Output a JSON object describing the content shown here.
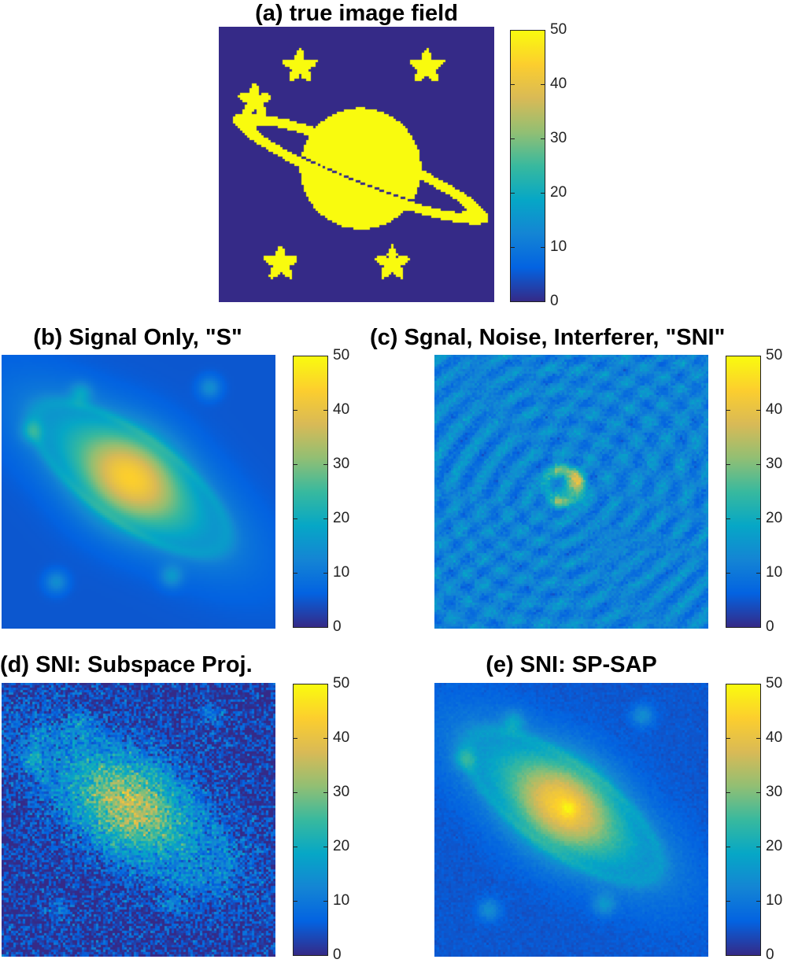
{
  "chart_data": [
    {
      "id": "a",
      "type": "heatmap",
      "title": "(a) true image field",
      "scene": "truth",
      "colorbar": {
        "ticks": [
          0,
          10,
          20,
          30,
          40,
          50
        ],
        "tick_labels": [
          "0",
          "10",
          "20",
          "30",
          "40",
          "50"
        ],
        "range": [
          0,
          50
        ],
        "colormap": "parula"
      }
    },
    {
      "id": "b",
      "type": "heatmap",
      "title": "(b) Signal Only, \"S\"",
      "scene": "signal",
      "colorbar": {
        "ticks": [
          0,
          10,
          20,
          30,
          40,
          50
        ],
        "tick_labels": [
          "0",
          "10",
          "20",
          "30",
          "40",
          "50"
        ],
        "range": [
          0,
          50
        ],
        "colormap": "parula"
      }
    },
    {
      "id": "c",
      "type": "heatmap",
      "title": "(c) Sgnal, Noise, Interferer, \"SNI\"",
      "scene": "sni",
      "colorbar": {
        "ticks": [
          0,
          10,
          20,
          30,
          40,
          50
        ],
        "tick_labels": [
          "0",
          "10",
          "20",
          "30",
          "40",
          "50"
        ],
        "range": [
          0,
          50
        ],
        "colormap": "parula"
      }
    },
    {
      "id": "d",
      "type": "heatmap",
      "title": "(d) SNI: Subspace Proj.",
      "scene": "subspace",
      "colorbar": {
        "ticks": [
          0,
          10,
          20,
          30,
          40,
          50
        ],
        "tick_labels": [
          "0",
          "10",
          "20",
          "30",
          "40",
          "50"
        ],
        "range": [
          0,
          50
        ],
        "colormap": "parula"
      }
    },
    {
      "id": "e",
      "type": "heatmap",
      "title": "(e) SNI: SP-SAP",
      "scene": "spsap",
      "colorbar": {
        "ticks": [
          0,
          10,
          20,
          30,
          40,
          50
        ],
        "tick_labels": [
          "0",
          "10",
          "20",
          "30",
          "40",
          "50"
        ],
        "range": [
          0,
          50
        ],
        "colormap": "parula"
      }
    }
  ],
  "colormap_stops": [
    "#352a87",
    "#0363e1",
    "#1485d4",
    "#06a7c6",
    "#38b99e",
    "#92bf73",
    "#d9ba56",
    "#fcce2e",
    "#f9fb0e"
  ]
}
